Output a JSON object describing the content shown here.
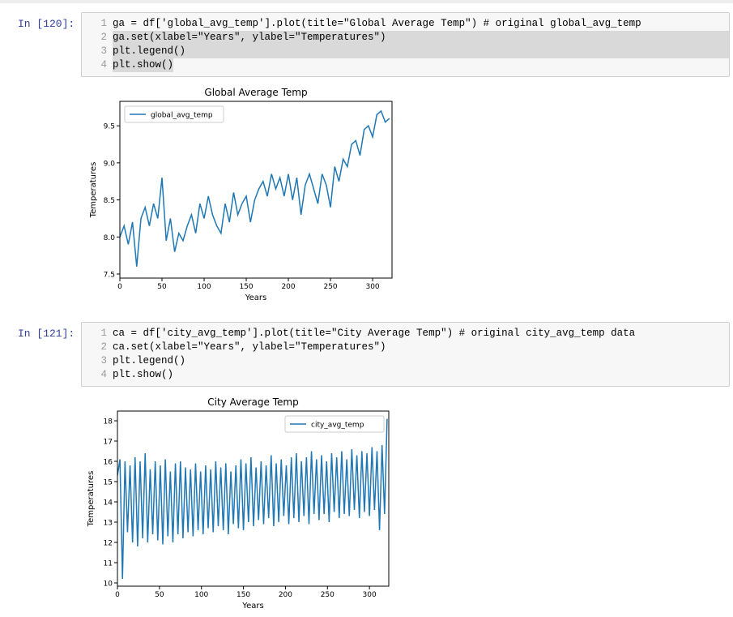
{
  "cells": [
    {
      "prompt": "In [120]:",
      "lines": [
        {
          "number": "1",
          "code": "ga = df['global_avg_temp'].plot(title=\"Global Average Temp\") # original global_avg_temp"
        },
        {
          "number": "2",
          "code": "ga.set(xlabel=\"Years\", ylabel=\"Temperatures\")"
        },
        {
          "number": "3",
          "code": "plt.legend()"
        },
        {
          "number": "4",
          "code": "plt.show()"
        }
      ]
    },
    {
      "prompt": "In [121]:",
      "lines": [
        {
          "number": "1",
          "code": "ca = df['city_avg_temp'].plot(title=\"City Average Temp\") # original city_avg_temp data"
        },
        {
          "number": "2",
          "code": "ca.set(xlabel=\"Years\", ylabel=\"Temperatures\")"
        },
        {
          "number": "3",
          "code": "plt.legend()"
        },
        {
          "number": "4",
          "code": "plt.show()"
        }
      ]
    }
  ],
  "chart_data": [
    {
      "type": "line",
      "title": "Global Average Temp",
      "xlabel": "Years",
      "ylabel": "Temperatures",
      "legend": "upper left",
      "x": [
        0,
        5,
        10,
        15,
        20,
        25,
        30,
        35,
        40,
        45,
        50,
        55,
        60,
        65,
        70,
        75,
        80,
        85,
        90,
        95,
        100,
        105,
        110,
        115,
        120,
        125,
        130,
        135,
        140,
        145,
        150,
        155,
        160,
        165,
        170,
        175,
        180,
        185,
        190,
        195,
        200,
        205,
        210,
        215,
        220,
        225,
        230,
        235,
        240,
        245,
        250,
        255,
        260,
        265,
        270,
        275,
        280,
        285,
        290,
        295,
        300,
        305,
        310,
        315,
        320
      ],
      "series": [
        {
          "name": "global_avg_temp",
          "color": "#1f77b4",
          "values": [
            8.0,
            8.15,
            7.9,
            8.2,
            7.6,
            8.25,
            8.4,
            8.15,
            8.45,
            8.25,
            8.8,
            7.95,
            8.25,
            7.8,
            8.05,
            7.95,
            8.15,
            8.3,
            8.05,
            8.45,
            8.25,
            8.55,
            8.3,
            8.15,
            8.05,
            8.45,
            8.2,
            8.6,
            8.3,
            8.45,
            8.55,
            8.2,
            8.5,
            8.65,
            8.75,
            8.55,
            8.85,
            8.65,
            8.8,
            8.55,
            8.85,
            8.5,
            8.8,
            8.3,
            8.7,
            8.85,
            8.65,
            8.45,
            8.85,
            8.7,
            8.4,
            8.95,
            8.75,
            9.05,
            8.95,
            9.25,
            9.3,
            9.1,
            9.45,
            9.5,
            9.35,
            9.65,
            9.7,
            9.55,
            9.6
          ]
        }
      ],
      "xlim": [
        0,
        323
      ],
      "ylim": [
        7.445,
        9.83
      ],
      "xticks": [
        0,
        50,
        100,
        150,
        200,
        250,
        300
      ],
      "yticks": [
        7.5,
        {
          "value": 8,
          "label": "8.0"
        },
        8.5,
        {
          "value": 9,
          "label": "9.0"
        },
        9.5
      ]
    },
    {
      "type": "line",
      "title": "City Average Temp",
      "xlabel": "Years",
      "ylabel": "Temperatures",
      "legend": "upper right",
      "x": [
        0,
        3,
        6,
        9,
        12,
        15,
        18,
        21,
        24,
        27,
        30,
        33,
        36,
        39,
        42,
        45,
        48,
        51,
        54,
        57,
        60,
        63,
        66,
        69,
        72,
        75,
        78,
        81,
        84,
        87,
        90,
        93,
        96,
        99,
        102,
        105,
        108,
        111,
        114,
        117,
        120,
        123,
        126,
        129,
        132,
        135,
        138,
        141,
        144,
        147,
        150,
        153,
        156,
        159,
        162,
        165,
        168,
        171,
        174,
        177,
        180,
        183,
        186,
        189,
        192,
        195,
        198,
        201,
        204,
        207,
        210,
        213,
        216,
        219,
        222,
        225,
        228,
        231,
        234,
        237,
        240,
        243,
        246,
        249,
        252,
        255,
        258,
        261,
        264,
        267,
        270,
        273,
        276,
        279,
        282,
        285,
        288,
        291,
        294,
        297,
        300,
        303,
        306,
        309,
        312,
        315,
        318,
        321
      ],
      "series": [
        {
          "name": "city_avg_temp",
          "color": "#1f77b4",
          "values": [
            15.3,
            16.1,
            10.2,
            16.0,
            12.5,
            15.8,
            12.0,
            16.2,
            11.8,
            16.0,
            12.2,
            16.4,
            12.0,
            15.6,
            12.4,
            16.0,
            12.1,
            15.8,
            11.9,
            16.1,
            12.3,
            15.5,
            12.0,
            15.9,
            12.4,
            16.0,
            12.2,
            15.7,
            12.5,
            15.6,
            12.3,
            15.9,
            12.6,
            15.5,
            12.4,
            15.8,
            12.7,
            15.6,
            12.5,
            16.0,
            12.8,
            15.7,
            12.6,
            15.9,
            12.4,
            15.5,
            12.9,
            15.8,
            12.7,
            16.1,
            12.6,
            15.9,
            13.0,
            16.2,
            12.8,
            15.7,
            13.1,
            16.0,
            12.9,
            15.8,
            13.2,
            16.3,
            12.8,
            15.9,
            13.0,
            16.1,
            13.3,
            15.8,
            12.9,
            16.2,
            13.2,
            16.4,
            13.0,
            16.0,
            13.3,
            16.2,
            12.9,
            16.5,
            13.4,
            16.1,
            13.1,
            16.3,
            13.4,
            16.0,
            13.0,
            16.4,
            13.5,
            16.2,
            13.2,
            16.5,
            13.4,
            16.1,
            13.3,
            16.6,
            13.6,
            16.3,
            13.2,
            16.5,
            13.5,
            16.4,
            13.3,
            16.7,
            13.6,
            16.5,
            12.6,
            16.8,
            13.4,
            18.1
          ]
        }
      ],
      "xlim": [
        0,
        323
      ],
      "ylim": [
        9.84,
        18.48
      ],
      "xticks": [
        0,
        50,
        100,
        150,
        200,
        250,
        300
      ],
      "yticks": [
        10,
        11,
        12,
        13,
        14,
        15,
        16,
        17,
        18
      ]
    }
  ]
}
